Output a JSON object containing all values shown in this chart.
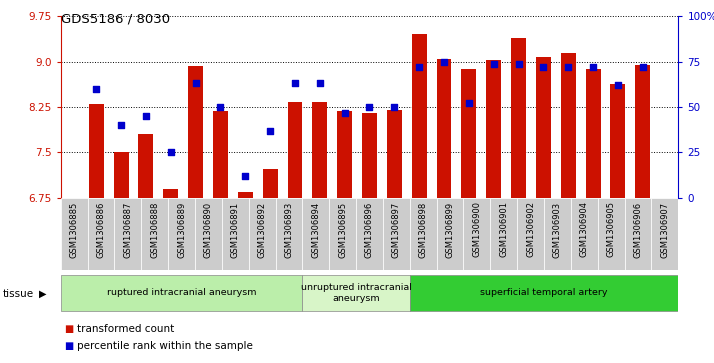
{
  "title": "GDS5186 / 8030",
  "samples": [
    "GSM1306885",
    "GSM1306886",
    "GSM1306887",
    "GSM1306888",
    "GSM1306889",
    "GSM1306890",
    "GSM1306891",
    "GSM1306892",
    "GSM1306893",
    "GSM1306894",
    "GSM1306895",
    "GSM1306896",
    "GSM1306897",
    "GSM1306898",
    "GSM1306899",
    "GSM1306900",
    "GSM1306901",
    "GSM1306902",
    "GSM1306903",
    "GSM1306904",
    "GSM1306905",
    "GSM1306906",
    "GSM1306907"
  ],
  "bar_values": [
    8.3,
    7.5,
    7.8,
    6.9,
    8.93,
    8.18,
    6.85,
    7.22,
    8.33,
    8.33,
    8.18,
    8.15,
    8.2,
    9.45,
    9.05,
    8.88,
    9.03,
    9.4,
    9.07,
    9.15,
    8.88,
    8.63,
    8.95
  ],
  "dot_values_pct": [
    60,
    40,
    45,
    25,
    63,
    50,
    12,
    37,
    63,
    63,
    47,
    50,
    50,
    72,
    75,
    52,
    74,
    74,
    72,
    72,
    72,
    62,
    72
  ],
  "ylim_left": [
    6.75,
    9.75
  ],
  "ylim_right": [
    0,
    100
  ],
  "yticks_left": [
    6.75,
    7.5,
    8.25,
    9.0,
    9.75
  ],
  "yticks_right": [
    0,
    25,
    50,
    75,
    100
  ],
  "bar_color": "#cc1100",
  "dot_color": "#0000cc",
  "bar_bottom": 6.75,
  "group_data": [
    {
      "label": "ruptured intracranial aneurysm",
      "start": 0,
      "end": 9,
      "color": "#bbeeaa"
    },
    {
      "label": "unruptured intracranial\naneurysm",
      "start": 9,
      "end": 13,
      "color": "#d8f5c8"
    },
    {
      "label": "superficial temporal artery",
      "start": 13,
      "end": 23,
      "color": "#33cc33"
    }
  ],
  "legend_red_label": "transformed count",
  "legend_blue_label": "percentile rank within the sample",
  "tissue_label": "tissue",
  "xtick_bg": "#cccccc",
  "fig_width": 7.14,
  "fig_height": 3.63
}
